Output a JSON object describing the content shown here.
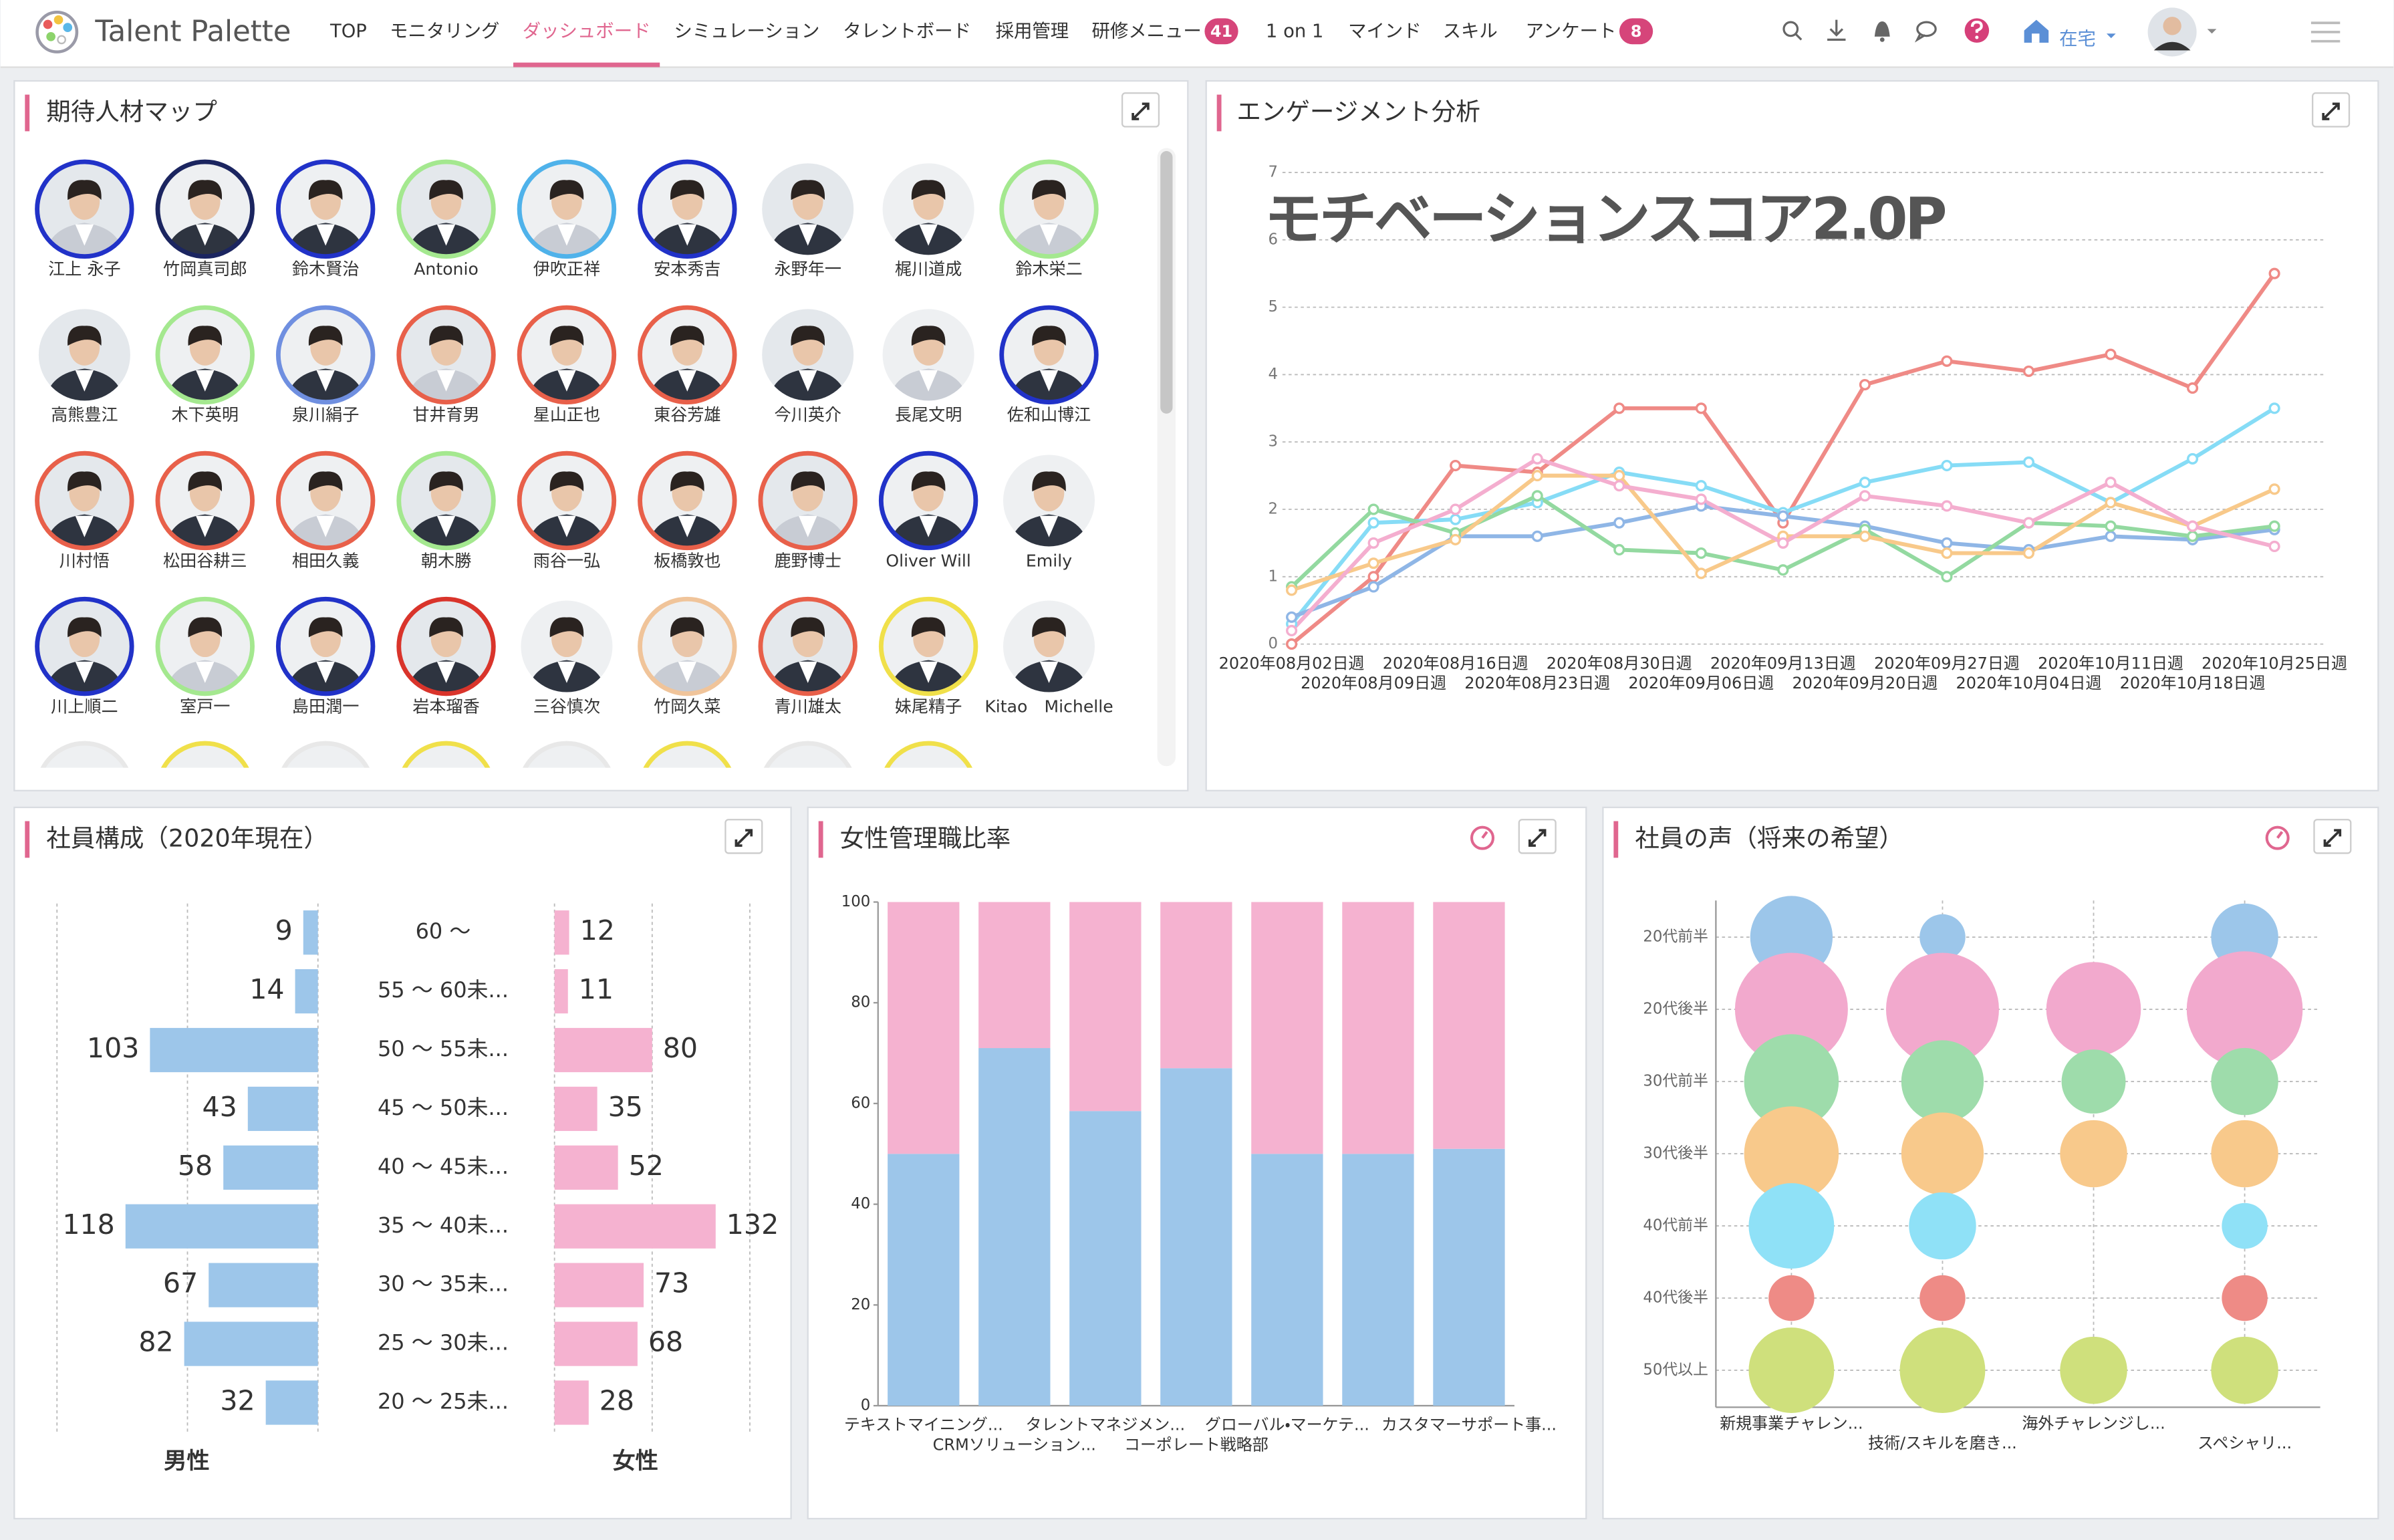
{
  "header": {
    "logo": "Talent Palette",
    "nav": [
      {
        "label": "TOP"
      },
      {
        "label": "モニタリング"
      },
      {
        "label": "ダッシュボード",
        "active": true
      },
      {
        "label": "シミュレーション"
      },
      {
        "label": "タレントボード"
      },
      {
        "label": "採用管理"
      },
      {
        "label": "研修メニュー",
        "badge": 41
      },
      {
        "label": "1 on 1"
      },
      {
        "label": "マインド"
      },
      {
        "label": "スキル"
      },
      {
        "label": "アンケート",
        "badge": 8
      }
    ],
    "status": "在宅"
  },
  "talent_map": {
    "title": "期待人材マップ",
    "people": [
      {
        "name": "江上 永子",
        "ring": "#2132c8"
      },
      {
        "name": "竹岡真司郎",
        "ring": "#1b2560"
      },
      {
        "name": "鈴木賢治",
        "ring": "#2132c8"
      },
      {
        "name": "Antonio",
        "ring": "#a4e88f"
      },
      {
        "name": "伊吹正祥",
        "ring": "#4fb2ea"
      },
      {
        "name": "安本秀吉",
        "ring": "#2132c8"
      },
      {
        "name": "永野年一"
      },
      {
        "name": "梶川道成"
      },
      {
        "name": "鈴木栄二",
        "ring": "#a4e88f"
      },
      {
        "name": "高熊豊江"
      },
      {
        "name": "木下英明",
        "ring": "#a4e88f"
      },
      {
        "name": "泉川絹子",
        "ring": "#6f8fe0"
      },
      {
        "name": "甘井育男",
        "ring": "#e8604a"
      },
      {
        "name": "星山正也",
        "ring": "#e8604a"
      },
      {
        "name": "東谷芳雄",
        "ring": "#e8604a"
      },
      {
        "name": "今川英介"
      },
      {
        "name": "長尾文明"
      },
      {
        "name": "佐和山博江",
        "ring": "#2132c8"
      },
      {
        "name": "川村悟",
        "ring": "#e8604a"
      },
      {
        "name": "松田谷耕三",
        "ring": "#e8604a"
      },
      {
        "name": "相田久義",
        "ring": "#e8604a"
      },
      {
        "name": "朝木勝",
        "ring": "#a4e88f"
      },
      {
        "name": "雨谷一弘",
        "ring": "#e8604a"
      },
      {
        "name": "板橋敦也",
        "ring": "#e8604a"
      },
      {
        "name": "鹿野博士",
        "ring": "#e8604a"
      },
      {
        "name": "Oliver Will",
        "ring": "#2132c8"
      },
      {
        "name": "Emily"
      },
      {
        "name": "川上順二",
        "ring": "#2132c8"
      },
      {
        "name": "室戸一",
        "ring": "#a4e88f"
      },
      {
        "name": "島田潤一",
        "ring": "#2132c8"
      },
      {
        "name": "岩本瑠香",
        "ring": "#d9342b"
      },
      {
        "name": "三谷慎次"
      },
      {
        "name": "竹岡久菜",
        "ring": "#f0c49a"
      },
      {
        "name": "青川雄太",
        "ring": "#e8604a"
      },
      {
        "name": "妹尾精子",
        "ring": "#f0e04a"
      },
      {
        "name": "Kitao　Michelle"
      }
    ]
  },
  "chart_data": [
    {
      "type": "line",
      "title": "エンゲージメント分析",
      "annotation": "モチベーションスコア2.0P",
      "categories": [
        "2020年08月02日週",
        "2020年08月09日週",
        "2020年08月16日週",
        "2020年08月23日週",
        "2020年08月30日週",
        "2020年09月06日週",
        "2020年09月13日週",
        "2020年09月20日週",
        "2020年09月27日週",
        "2020年10月04日週",
        "2020年10月11日週",
        "2020年10月18日週",
        "2020年10月25日週"
      ],
      "ylim": [
        0,
        7
      ],
      "yticks": [
        0,
        1,
        2,
        3,
        4,
        5,
        6,
        7
      ],
      "grid": true,
      "series": [
        {
          "color": "#ef8a86",
          "values": [
            0,
            1.0,
            2.65,
            2.55,
            3.5,
            3.5,
            1.8,
            3.85,
            4.2,
            4.05,
            4.3,
            3.8,
            5.5
          ]
        },
        {
          "color": "#86dcf6",
          "values": [
            0.3,
            1.8,
            1.85,
            2.1,
            2.55,
            2.35,
            1.95,
            2.4,
            2.65,
            2.7,
            2.1,
            2.75,
            3.5
          ]
        },
        {
          "color": "#8fb6e6",
          "values": [
            0.4,
            0.85,
            1.6,
            1.6,
            1.8,
            2.05,
            1.9,
            1.75,
            1.5,
            1.4,
            1.6,
            1.55,
            1.7
          ]
        },
        {
          "color": "#93d9a0",
          "values": [
            0.85,
            2.0,
            1.65,
            2.2,
            1.4,
            1.35,
            1.1,
            1.7,
            1.0,
            1.8,
            1.75,
            1.6,
            1.75
          ]
        },
        {
          "color": "#f8c98a",
          "values": [
            0.8,
            1.2,
            1.55,
            2.5,
            2.5,
            1.05,
            1.6,
            1.6,
            1.35,
            1.35,
            2.1,
            1.75,
            2.3
          ]
        },
        {
          "color": "#f4aecf",
          "values": [
            0.2,
            1.5,
            2.0,
            2.75,
            2.35,
            2.15,
            1.5,
            2.2,
            2.05,
            1.8,
            2.4,
            1.75,
            1.45
          ]
        }
      ]
    },
    {
      "type": "pyramid",
      "title": "社員構成（2020年現在）",
      "categories": [
        "60 ～",
        "55 ～ 60未...",
        "50 ～ 55未...",
        "45 ～ 50未...",
        "40 ～ 45未...",
        "35 ～ 40未...",
        "30 ～ 35未...",
        "25 ～ 30未...",
        "20 ～ 25未..."
      ],
      "xlim": [
        0,
        160
      ],
      "series": [
        {
          "name": "男性",
          "color": "#9dc6ea",
          "values": [
            9,
            14,
            103,
            43,
            58,
            118,
            67,
            82,
            32
          ]
        },
        {
          "name": "女性",
          "color": "#f5b2d0",
          "values": [
            12,
            11,
            80,
            35,
            52,
            132,
            73,
            68,
            28
          ]
        }
      ]
    },
    {
      "type": "bar",
      "stacked": true,
      "title": "女性管理職比率",
      "categories": [
        "テキストマイニング...",
        "CRMソリューション...",
        "タレントマネジメン...",
        "コーポレート戦略部",
        "グローバル・マーケテ...",
        null,
        "カスタマーサポート事..."
      ],
      "ylim": [
        0,
        100
      ],
      "yticks": [
        0,
        20,
        40,
        60,
        80,
        100
      ],
      "series": [
        {
          "color": "#9dc6ea",
          "values": [
            50,
            71,
            58.5,
            67,
            50,
            50,
            51
          ]
        },
        {
          "color": "#f5b2d0",
          "values": [
            50,
            29,
            41.5,
            33,
            50,
            50,
            49
          ]
        }
      ]
    },
    {
      "type": "bubble",
      "title": "社員の声（将来の希望）",
      "categories": [
        "新規事業チャレン...",
        "技術/スキルを磨き...",
        "海外チャレンジし...",
        "スペシャリ..."
      ],
      "y_categories": [
        "20代前半",
        "20代後半",
        "30代前半",
        "30代後半",
        "40代前半",
        "40代後半",
        "50代以上"
      ],
      "series": [
        {
          "color": "#9cc6ea",
          "values": [
            27,
            15,
            null,
            22
          ]
        },
        {
          "color": "#f2a9cd",
          "values": [
            37,
            37,
            31,
            38
          ]
        },
        {
          "color": "#9edcab",
          "values": [
            31,
            27,
            21,
            22
          ]
        },
        {
          "color": "#f8c98b",
          "values": [
            31,
            27,
            22,
            22
          ]
        },
        {
          "color": "#8fe1f7",
          "values": [
            28,
            22,
            null,
            15
          ]
        },
        {
          "color": "#ee8b86",
          "values": [
            15,
            15,
            null,
            15
          ]
        },
        {
          "color": "#cfe07c",
          "values": [
            28,
            28,
            22,
            22
          ]
        }
      ]
    }
  ]
}
